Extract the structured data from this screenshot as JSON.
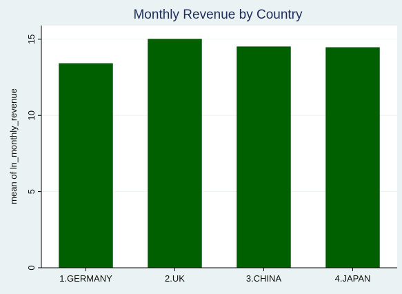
{
  "chart_data": {
    "type": "bar",
    "title": "Monthly Revenue by Country",
    "xlabel": "",
    "ylabel": "mean of ln_monthly_revenue",
    "categories": [
      "1.GERMANY",
      "2.UK",
      "3.CHINA",
      "4.JAPAN"
    ],
    "values": [
      13.4,
      15.0,
      14.5,
      14.45
    ],
    "ylim": [
      0,
      15.9
    ],
    "yticks": [
      0,
      5,
      10,
      15
    ],
    "grid": true,
    "legend": "none",
    "colors": {
      "bar_fill": "#006000",
      "bar_stroke": "#004a00",
      "plot_background": "#ffffff",
      "outer_background": "#eaf2f3",
      "title": "#1e2d5a",
      "grid": "#eef3f4"
    }
  }
}
